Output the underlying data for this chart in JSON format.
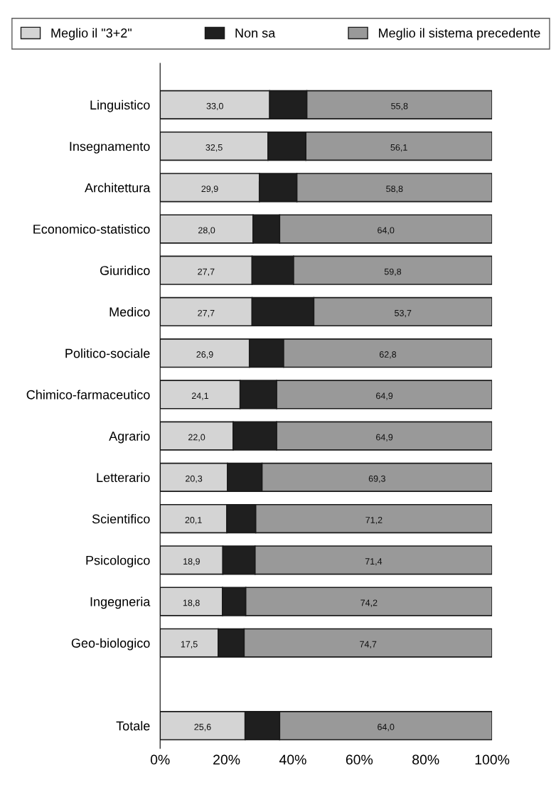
{
  "chart_data": {
    "type": "bar",
    "orientation": "horizontal",
    "stacked": true,
    "categories": [
      "Linguistico",
      "Insegnamento",
      "Architettura",
      "Economico-statistico",
      "Giuridico",
      "Medico",
      "Politico-sociale",
      "Chimico-farmaceutico",
      "Agrario",
      "Letterario",
      "Scientifico",
      "Psicologico",
      "Ingegneria",
      "Geo-biologico",
      null,
      "Totale"
    ],
    "series": [
      {
        "name": "Meglio il \"3+2\"",
        "color": "#d4d4d4",
        "values": [
          33.0,
          32.5,
          29.9,
          28.0,
          27.7,
          27.7,
          26.9,
          24.1,
          22.0,
          20.3,
          20.1,
          18.9,
          18.8,
          17.5,
          null,
          25.6
        ],
        "value_labels": [
          "33,0",
          "32,5",
          "29,9",
          "28,0",
          "27,7",
          "27,7",
          "26,9",
          "24,1",
          "22,0",
          "20,3",
          "20,1",
          "18,9",
          "18,8",
          "17,5",
          null,
          "25,6"
        ]
      },
      {
        "name": "Non sa",
        "color": "#1f1f1f",
        "values": [
          11.2,
          11.4,
          11.3,
          8.0,
          12.5,
          18.6,
          10.3,
          11.0,
          13.1,
          10.4,
          8.7,
          9.7,
          7.0,
          7.8,
          null,
          10.4
        ]
      },
      {
        "name": "Meglio il sistema precedente",
        "color": "#999999",
        "values": [
          55.8,
          56.1,
          58.8,
          64.0,
          59.8,
          53.7,
          62.8,
          64.9,
          64.9,
          69.3,
          71.2,
          71.4,
          74.2,
          74.7,
          null,
          64.0
        ],
        "value_labels": [
          "55,8",
          "56,1",
          "58,8",
          "64,0",
          "59,8",
          "53,7",
          "62,8",
          "64,9",
          "64,9",
          "69,3",
          "71,2",
          "71,4",
          "74,2",
          "74,7",
          null,
          "64,0"
        ]
      }
    ],
    "xlim": [
      0,
      100
    ],
    "xticks": [
      {
        "value": 0,
        "label": "0%"
      },
      {
        "value": 20,
        "label": "20%"
      },
      {
        "value": 40,
        "label": "40%"
      },
      {
        "value": 60,
        "label": "60%"
      },
      {
        "value": 80,
        "label": "80%"
      },
      {
        "value": 100,
        "label": "100%"
      }
    ],
    "grid": false,
    "legend": "top"
  }
}
